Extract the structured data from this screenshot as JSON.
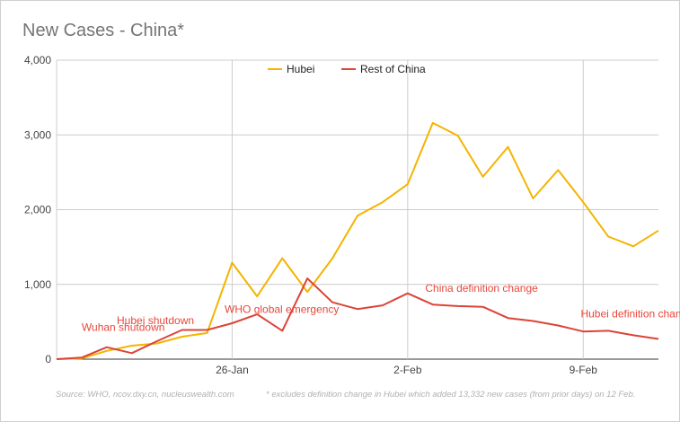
{
  "chart_data": {
    "type": "line",
    "title": "New Cases - China*",
    "x_tick_labels": [
      "26-Jan",
      "2-Feb",
      "9-Feb"
    ],
    "x_tick_indices": [
      7,
      14,
      21
    ],
    "y_ticks": [
      0,
      1000,
      2000,
      3000,
      4000
    ],
    "y_tick_labels": [
      "0",
      "1,000",
      "2,000",
      "3,000",
      "4,000"
    ],
    "ylim": [
      0,
      4000
    ],
    "grid": true,
    "legend_position": "top-center",
    "series": [
      {
        "name": "Hubei",
        "color": "#f4b400",
        "values": [
          0,
          10,
          110,
          180,
          210,
          300,
          350,
          1290,
          840,
          1350,
          900,
          1350,
          1920,
          2100,
          2340,
          3160,
          2990,
          2440,
          2840,
          2150,
          2530,
          2100,
          1640,
          1510,
          1720
        ]
      },
      {
        "name": "Rest of China",
        "color": "#db4437",
        "values": [
          0,
          20,
          160,
          80,
          240,
          390,
          390,
          480,
          600,
          380,
          1080,
          760,
          670,
          720,
          880,
          730,
          710,
          700,
          550,
          510,
          450,
          370,
          380,
          320,
          270
        ]
      }
    ],
    "annotations": [
      {
        "text": "Wuhan shutdown",
        "x_index": 1,
        "value": 380
      },
      {
        "text": "Hubei shutdown",
        "x_index": 2.4,
        "value": 470
      },
      {
        "text": "WHO global emergency",
        "x_index": 6.7,
        "value": 620
      },
      {
        "text": "China definition change",
        "x_index": 14.7,
        "value": 900
      },
      {
        "text": "Hubei definition change",
        "x_index": 20.9,
        "value": 560
      }
    ]
  },
  "footer": {
    "source": "Source: WHO, ncov.dxy.cn, nucleuswealth.com",
    "note": "* excludes definition change in Hubei which added 13,332 new cases (from prior days) on 12 Feb."
  }
}
